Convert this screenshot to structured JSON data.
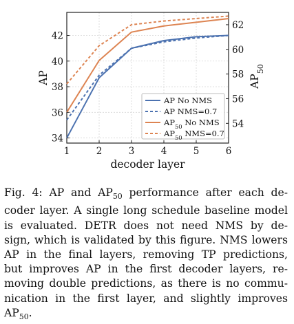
{
  "chart_data": {
    "type": "line",
    "xlabel": "decoder layer",
    "ylabel_left": "AP",
    "ylabel_right": "AP50",
    "x": [
      1,
      2,
      3,
      4,
      5,
      6
    ],
    "x_ticks": [
      "1",
      "2",
      "3",
      "4",
      "5",
      "6"
    ],
    "y_left_ticks": [
      "34",
      "36",
      "38",
      "40",
      "42"
    ],
    "y_right_ticks": [
      "54",
      "56",
      "58",
      "60",
      "62"
    ],
    "ylim_left": [
      33.6,
      43.8
    ],
    "ylim_right": [
      52.4,
      63.0
    ],
    "grid": true,
    "legend_position": "bottom-right",
    "series": [
      {
        "name": "AP No NMS",
        "axis": "left",
        "color": "#4C72B0",
        "style": "solid",
        "values": [
          34.0,
          38.7,
          41.0,
          41.6,
          41.9,
          42.0
        ]
      },
      {
        "name": "AP NMS=0.7",
        "axis": "left",
        "color": "#4C72B0",
        "style": "dashed",
        "values": [
          35.4,
          38.9,
          41.0,
          41.5,
          41.8,
          42.0
        ]
      },
      {
        "name": "AP50 No NMS",
        "axis": "right",
        "color": "#DD8452",
        "style": "solid",
        "values": [
          54.9,
          59.1,
          61.4,
          61.9,
          62.2,
          62.5
        ]
      },
      {
        "name": "AP50 NMS=0.7",
        "axis": "right",
        "color": "#DD8452",
        "style": "dashed",
        "values": [
          57.2,
          60.3,
          62.0,
          62.3,
          62.5,
          62.7
        ]
      }
    ]
  },
  "caption": {
    "label": "Fig. 4:",
    "lines": [
      "AP and AP50 performance after each de-",
      "coder layer. A single long schedule baseline model",
      "is evaluated. DETR does not need NMS by de-",
      "sign, which is validated by this figure. NMS lowers",
      "AP in the final layers, removing TP predictions,",
      "but improves AP in the first decoder layers, re-",
      "moving double predictions, as there is no commu-",
      "nication in the first layer, and slightly improves",
      "AP50."
    ]
  }
}
